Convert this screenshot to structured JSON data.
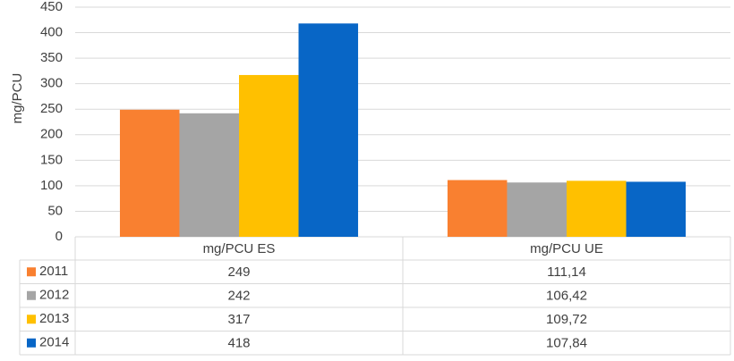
{
  "chart_data": {
    "type": "bar",
    "ylabel": "mg/PCU",
    "categories": [
      "mg/PCU ES",
      "mg/PCU UE"
    ],
    "series": [
      {
        "name": "2011",
        "color": "#f98030",
        "values": [
          249,
          111.14
        ],
        "value_labels": [
          "249",
          "111,14"
        ]
      },
      {
        "name": "2012",
        "color": "#a5a5a5",
        "values": [
          242,
          106.42
        ],
        "value_labels": [
          "242",
          "106,42"
        ]
      },
      {
        "name": "2013",
        "color": "#ffc000",
        "values": [
          317,
          109.72
        ],
        "value_labels": [
          "317",
          "109,72"
        ]
      },
      {
        "name": "2014",
        "color": "#0866c6",
        "values": [
          418,
          107.84
        ],
        "value_labels": [
          "418",
          "107,84"
        ]
      }
    ],
    "ylim": [
      0,
      450
    ],
    "yticks": [
      0,
      50,
      100,
      150,
      200,
      250,
      300,
      350,
      400,
      450
    ],
    "grid": true
  }
}
